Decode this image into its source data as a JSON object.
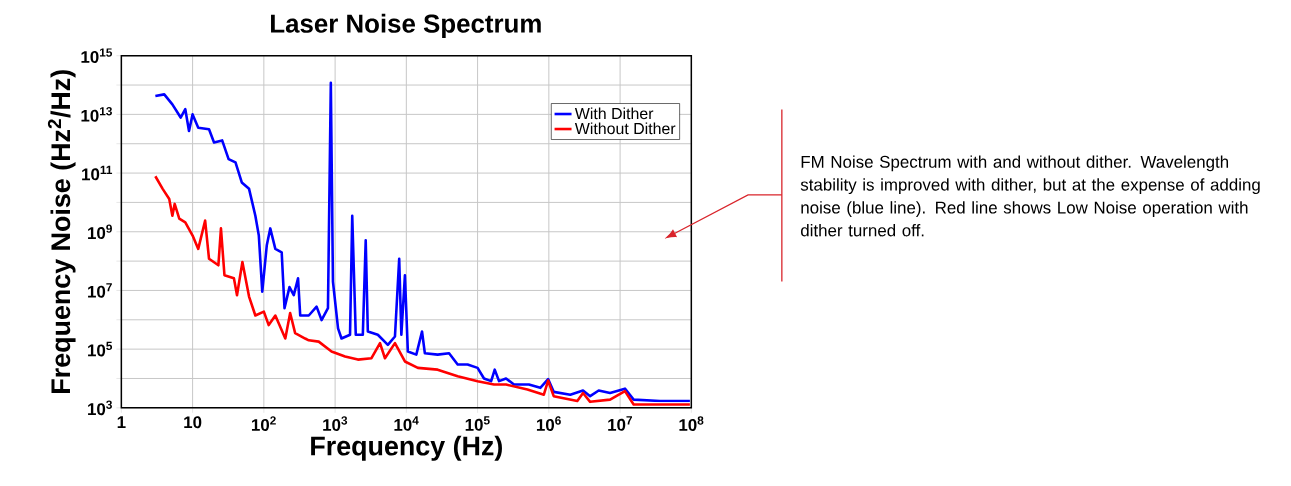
{
  "chart_data": {
    "type": "line",
    "title": "Laser Noise Spectrum",
    "xlabel": "Frequency (Hz)",
    "ylabel": "Frequency Noise (Hz$^{2}$/Hz)",
    "log": "xy",
    "grid": true,
    "legend": "top right",
    "xlim": [
      1,
      100000000
    ],
    "ylim": [
      1000,
      1000000000000000
    ],
    "xticks": [
      1,
      10,
      {
        "value": 100,
        "label": "10$^{2}$"
      },
      {
        "value": 1000,
        "label": "10$^{3}$"
      },
      {
        "value": 10000,
        "label": "10$^{4}$"
      },
      {
        "value": 100000,
        "label": "10$^{5}$"
      },
      {
        "value": 1000000,
        "label": "10$^{6}$"
      },
      {
        "value": 10000000,
        "label": "10$^{7}$"
      },
      {
        "value": 100000000,
        "label": "10$^{8}$"
      }
    ],
    "yticks": [
      {
        "value": 1000,
        "label": "10$^{3}$"
      },
      {
        "value": 10000,
        "label": null
      },
      {
        "value": 100000,
        "label": "10$^{5}$"
      },
      {
        "value": 1000000,
        "label": null
      },
      {
        "value": 10000000,
        "label": "10$^{7}$"
      },
      {
        "value": 100000000,
        "label": null
      },
      {
        "value": 1000000000,
        "label": "10$^{9}$"
      },
      {
        "value": 10000000000,
        "label": null
      },
      {
        "value": 100000000000,
        "label": "10$^{11}$"
      },
      {
        "value": 1000000000000,
        "label": null
      },
      {
        "value": 10000000000000,
        "label": "10$^{13}$"
      },
      {
        "value": 100000000000000,
        "label": null
      },
      {
        "value": 1000000000000000,
        "label": "10$^{15}$"
      }
    ],
    "annotations": [
      "FM Noise Spectrum with and without dither. Wavelength stability is improved with dither, but at the expense of adding noise (blue line). Red line shows Low Noise operation with dither turned off."
    ],
    "series": [
      {
        "name": "With Dither",
        "color": "#0000ff",
        "x": [
          3.0,
          4.0,
          5.2,
          6.8,
          7.9,
          8.9,
          10,
          12,
          17,
          20,
          26,
          32,
          40,
          49,
          62,
          76,
          85,
          95,
          110,
          123,
          145,
          178,
          195,
          229,
          263,
          302,
          324,
          427,
          550,
          646,
          794,
          871,
          933,
          1100,
          1230,
          1620,
          1740,
          1950,
          2450,
          2690,
          2880,
          3980,
          5500,
          6920,
          7940,
          8510,
          9550,
          10500,
          13800,
          16600,
          18200,
          27500,
          39800,
          52500,
          72400,
          100000,
          123000,
          155000,
          174000,
          200000,
          251000,
          324000,
          525000,
          759000,
          977000,
          1170000,
          2000000,
          3020000,
          3800000,
          5010000,
          7240000,
          11700000,
          15500000,
          36300000,
          95500000
        ],
        "values": [
          42000000000000.0,
          48000000000000.0,
          22000000000000.0,
          7800000000000.0,
          15000000000000.0,
          2700000000000.0,
          10000000000000.0,
          3500000000000.0,
          3100000000000.0,
          1100000000000.0,
          1300000000000.0,
          300000000000.0,
          230000000000.0,
          48000000000.0,
          29000000000.0,
          3500000000.0,
          740000000.0,
          9100000.0,
          350000000.0,
          1300000000.0,
          260000000.0,
          200000000.0,
          2500000.0,
          13000000.0,
          6900000.0,
          26000000.0,
          1400000.0,
          1400000.0,
          2800000.0,
          980000.0,
          2500000.0,
          120000000000000.0,
          20000000.0,
          510000.0,
          230000.0,
          310000.0,
          3500000000.0,
          310000.0,
          310000.0,
          510000000.0,
          400000.0,
          310000.0,
          140000.0,
          270000.0,
          120000000.0,
          310000.0,
          33000000.0,
          83000.0,
          65000.0,
          400000.0,
          72000.0,
          65000.0,
          72000.0,
          30000.0,
          30000.0,
          23000.0,
          10000.0,
          8100.0,
          20000.0,
          8100.0,
          10000.0,
          6200.0,
          6200.0,
          4800.0,
          9500.0,
          3500.0,
          2800.0,
          3900.0,
          2500.0,
          3900.0,
          3200.0,
          4500.0,
          1900.0,
          1700.0,
          1700.0
        ]
      },
      {
        "name": "Without Dither",
        "color": "#ff0000",
        "x": [
          3.0,
          3.8,
          4.7,
          5.2,
          5.6,
          6.5,
          7.9,
          10,
          12,
          15,
          17,
          23,
          25,
          28,
          38,
          42,
          50,
          62,
          76,
          100,
          117,
          145,
          200,
          234,
          275,
          380,
          427,
          589,
          891,
          1380,
          2090,
          3240,
          4270,
          5010,
          6920,
          9550,
          14500,
          27500,
          52500,
          100000,
          170000,
          251000,
          501000,
          851000,
          977000,
          1170000,
          2510000,
          3020000,
          3800000,
          7240000,
          11700000,
          15500000,
          36300000,
          95500000
        ],
        "values": [
          78000000000.0,
          29000000000.0,
          13000000000.0,
          3500000000.0,
          8900000000.0,
          2800000000.0,
          2100000000.0,
          740000000.0,
          260000000.0,
          2400000000.0,
          120000000.0,
          72000000.0,
          1300000000.0,
          33000000.0,
          26000000.0,
          6900000.0,
          93000000.0,
          6200000.0,
          1400000.0,
          1900000.0,
          660000.0,
          1400000.0,
          230000.0,
          1700000.0,
          350000.0,
          230000.0,
          200000.0,
          180000.0,
          83000.0,
          56000.0,
          44000.0,
          49000.0,
          160000.0,
          49000.0,
          160000.0,
          38000.0,
          23000.0,
          20000.0,
          12000.0,
          8100.0,
          6200.0,
          6200.0,
          4200.0,
          2800.0,
          8500.0,
          2500.0,
          1700.0,
          3200.0,
          1600.0,
          1900.0,
          3700.0,
          1300.0,
          1300.0,
          1300.0
        ]
      }
    ]
  }
}
